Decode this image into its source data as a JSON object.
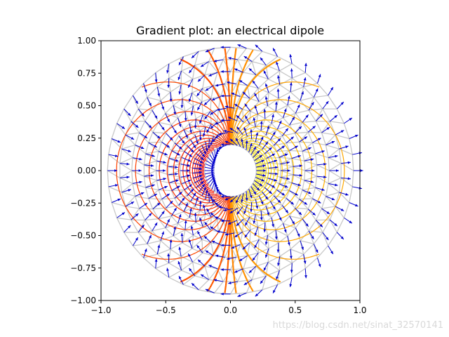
{
  "chart_data": {
    "type": "scatter",
    "title": "Gradient plot: an electrical dipole",
    "xlabel": "",
    "ylabel": "",
    "xlim": [
      -1.0,
      1.0
    ],
    "ylim": [
      -1.0,
      1.0
    ],
    "aspect": "equal",
    "grid": false,
    "legend": "none",
    "x_ticks": [
      -1.0,
      -0.5,
      0.0,
      0.5,
      1.0
    ],
    "x_tick_labels": [
      "−1.0",
      "−0.5",
      "0.0",
      "0.5",
      "1.0"
    ],
    "y_ticks": [
      1.0,
      0.75,
      0.5,
      0.25,
      0.0,
      -0.25,
      -0.5,
      -0.75,
      -1.0
    ],
    "y_tick_labels": [
      "1.00",
      "0.75",
      "0.50",
      "0.25",
      "0.00",
      "−0.25",
      "−0.50",
      "−0.75",
      "−1.00"
    ],
    "domain": {
      "shape": "annulus",
      "r_inner": 0.2,
      "r_outer": 0.95
    },
    "layers": [
      "triangulation-mesh",
      "filled-potential-contours",
      "gradient-quiver"
    ],
    "mesh_color": "#c8c8c8",
    "quiver_color": "#0000cc",
    "colormap": [
      "#ffff00",
      "#ffa500",
      "#ff4500",
      "#ff0000"
    ]
  },
  "watermark": "https://blog.csdn.net/sinat_32570141"
}
